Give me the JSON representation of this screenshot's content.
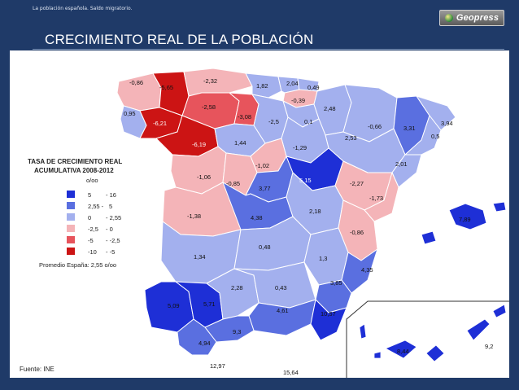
{
  "header": {
    "breadcrumb": "La población española. Saldo migratorio.",
    "logo_text": "Geopress",
    "title": "CRECIMIENTO REAL DE LA POBLACIÓN"
  },
  "legend": {
    "title_line1": "TASA DE CRECIMIENTO REAL",
    "title_line2": "ACUMULATIVA 2008-2012",
    "unit": "o/oo",
    "classes": [
      {
        "from": "5",
        "to": "- 16",
        "color": "#1e2fd6"
      },
      {
        "from": "2,55 -",
        "to": "5",
        "color": "#5a6fe0"
      },
      {
        "from": "0",
        "to": "- 2,55",
        "color": "#a3b0ee"
      },
      {
        "from": "-2,5",
        "to": "- 0",
        "color": "#f4b4b8"
      },
      {
        "from": "-5",
        "to": "- -2,5",
        "color": "#e7545c"
      },
      {
        "from": "-10",
        "to": "- -5",
        "color": "#cc1414"
      }
    ],
    "average": "Promedio España: 2,55 o/oo"
  },
  "source": "Fuente: INE",
  "regions": [
    {
      "name": "a-coruna",
      "value": "-0,86"
    },
    {
      "name": "lugo",
      "value": "-5,65"
    },
    {
      "name": "asturias",
      "value": "-2,32"
    },
    {
      "name": "cantabria",
      "value": "1,82"
    },
    {
      "name": "bizkaia",
      "value": "2,04"
    },
    {
      "name": "gipuzkoa",
      "value": "0,49"
    },
    {
      "name": "alava",
      "value": "-0,39"
    },
    {
      "name": "pontevedra",
      "value": "0,95"
    },
    {
      "name": "leon",
      "value": "-2,58"
    },
    {
      "name": "ourense",
      "value": "-6,21"
    },
    {
      "name": "palencia",
      "value": "-3,08"
    },
    {
      "name": "burgos",
      "value": "-2,5"
    },
    {
      "name": "la-rioja",
      "value": "0,1"
    },
    {
      "name": "navarra",
      "value": "2,48"
    },
    {
      "name": "huesca",
      "value": "-0,66"
    },
    {
      "name": "lleida",
      "value": "3,31"
    },
    {
      "name": "girona",
      "value": "3,94"
    },
    {
      "name": "barcelona",
      "value": "0,5"
    },
    {
      "name": "zamora",
      "value": "-6,19"
    },
    {
      "name": "valladolid",
      "value": "1,44"
    },
    {
      "name": "soria",
      "value": "-1,29"
    },
    {
      "name": "zaragoza",
      "value": "2,53"
    },
    {
      "name": "tarragona",
      "value": "2,01"
    },
    {
      "name": "salamanca",
      "value": "-1,06"
    },
    {
      "name": "avila",
      "value": "-0,85"
    },
    {
      "name": "segovia",
      "value": "-1,02"
    },
    {
      "name": "madrid",
      "value": "3,77"
    },
    {
      "name": "guadalajara",
      "value": "5,15"
    },
    {
      "name": "teruel",
      "value": "-2,27"
    },
    {
      "name": "castellon",
      "value": "-1,73"
    },
    {
      "name": "caceres",
      "value": "-1,38"
    },
    {
      "name": "toledo",
      "value": "4,38"
    },
    {
      "name": "cuenca",
      "value": "2,18"
    },
    {
      "name": "valencia",
      "value": "-0,86"
    },
    {
      "name": "baleares",
      "value": "7,89"
    },
    {
      "name": "badajoz",
      "value": "1,34"
    },
    {
      "name": "ciudad-real",
      "value": "0,48"
    },
    {
      "name": "albacete",
      "value": "1,3"
    },
    {
      "name": "alicante",
      "value": "4,35"
    },
    {
      "name": "murcia",
      "value": "3,85"
    },
    {
      "name": "huelva",
      "value": "5,09"
    },
    {
      "name": "sevilla",
      "value": "5,71"
    },
    {
      "name": "cordoba",
      "value": "2,28"
    },
    {
      "name": "jaen",
      "value": "0,43"
    },
    {
      "name": "granada",
      "value": "4,61"
    },
    {
      "name": "almeria",
      "value": "10,57"
    },
    {
      "name": "cadiz",
      "value": "4,94"
    },
    {
      "name": "malaga",
      "value": "9,3"
    },
    {
      "name": "ceuta",
      "value": "12,97"
    },
    {
      "name": "melilla",
      "value": "15,64"
    },
    {
      "name": "santa-cruz-tenerife",
      "value": "8,44"
    },
    {
      "name": "las-palmas",
      "value": "9,2"
    }
  ]
}
